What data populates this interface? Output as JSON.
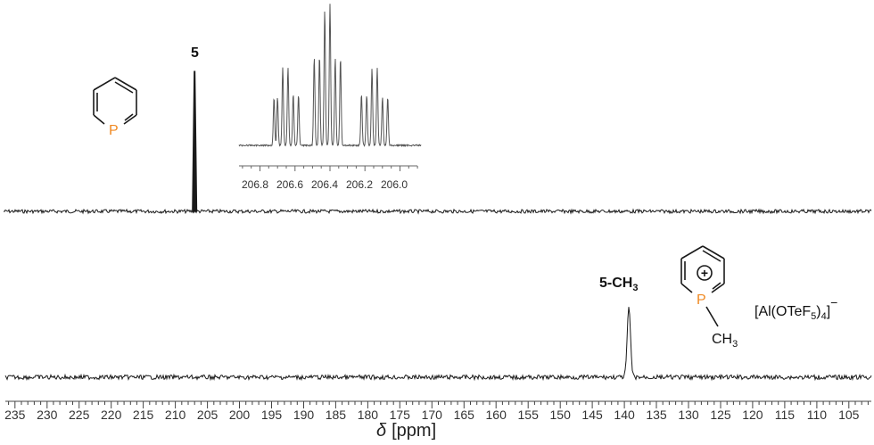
{
  "chart_data": [
    {
      "type": "line",
      "panel": "top",
      "label": "5",
      "description_peaks": [
        {
          "x": 207.0,
          "y": 1.0
        }
      ],
      "x": [
        236,
        207.2,
        207.05,
        207.0,
        206.95,
        206.8,
        102
      ],
      "y": [
        0,
        0,
        0.5,
        1.0,
        0.5,
        0,
        0
      ],
      "xlim": [
        236.5,
        101.5
      ]
    },
    {
      "type": "line",
      "panel": "inset",
      "x": [
        206.8,
        206.6,
        206.4,
        206.2,
        206.0
      ],
      "peaks": [
        {
          "x": 206.72,
          "y": 0.34
        },
        {
          "x": 206.7,
          "y": 0.34
        },
        {
          "x": 206.67,
          "y": 0.55
        },
        {
          "x": 206.64,
          "y": 0.55
        },
        {
          "x": 206.61,
          "y": 0.36
        },
        {
          "x": 206.58,
          "y": 0.36
        },
        {
          "x": 206.49,
          "y": 0.63
        },
        {
          "x": 206.46,
          "y": 0.63
        },
        {
          "x": 206.43,
          "y": 0.96
        },
        {
          "x": 206.4,
          "y": 1.0
        },
        {
          "x": 206.37,
          "y": 0.62
        },
        {
          "x": 206.34,
          "y": 0.62
        },
        {
          "x": 206.22,
          "y": 0.36
        },
        {
          "x": 206.19,
          "y": 0.36
        },
        {
          "x": 206.16,
          "y": 0.55
        },
        {
          "x": 206.13,
          "y": 0.55
        },
        {
          "x": 206.1,
          "y": 0.34
        },
        {
          "x": 206.07,
          "y": 0.34
        }
      ],
      "xlim": [
        206.92,
        205.88
      ],
      "tick_labels": [
        "206.8",
        "206.6",
        "206.4",
        "206.2",
        "206.0"
      ]
    },
    {
      "type": "line",
      "panel": "bottom",
      "label": "5-CH3",
      "peaks": [
        {
          "x": 139.3,
          "y": 1.0
        }
      ],
      "xlim": [
        236.5,
        101.5
      ]
    }
  ],
  "axis": {
    "tick_labels": [
      "235",
      "230",
      "225",
      "220",
      "215",
      "210",
      "205",
      "200",
      "195",
      "190",
      "185",
      "180",
      "175",
      "170",
      "165",
      "160",
      "155",
      "150",
      "145",
      "140",
      "135",
      "130",
      "125",
      "120",
      "115",
      "110",
      "105"
    ],
    "xlabel_symbol": "δ",
    "xlabel_unit": "[ppm]"
  },
  "labels": {
    "top_compound": "5",
    "bottom_compound_main": "5-CH",
    "bottom_compound_sub": "3",
    "p_atom": "P",
    "plus_sign": "+",
    "ch3_main": "CH",
    "ch3_sub": "3",
    "anion_a": "[Al(OTeF",
    "anion_sub5": "5",
    "anion_b": ")",
    "anion_sub4": "4",
    "anion_c": "]",
    "anion_charge": "−"
  },
  "colors": {
    "trace": "#1a1a1a",
    "inset_trace": "#555555",
    "phosphorus": "#f08a24",
    "axis": "#444444"
  }
}
